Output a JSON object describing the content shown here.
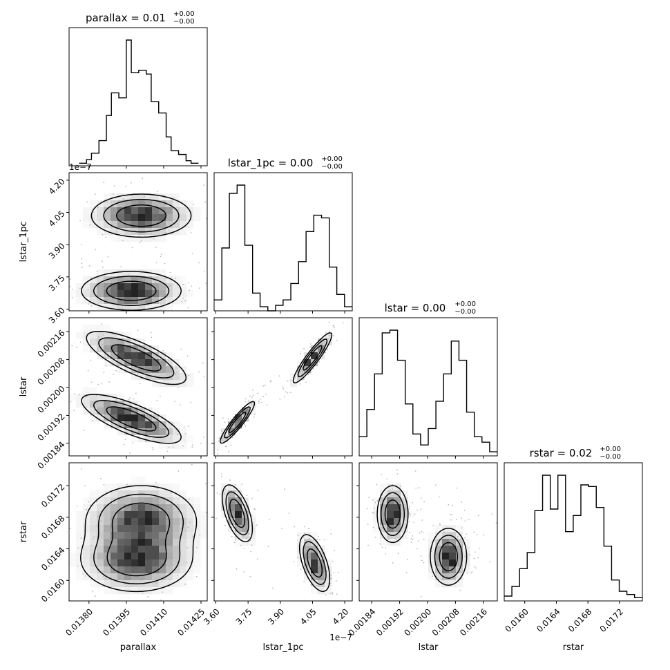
{
  "chart_data": [
    {
      "type": "histogram",
      "panel": "parallax",
      "title_main": "parallax = 0.01",
      "title_sup": "+0.00",
      "title_sub": "−0.00",
      "xlim": [
        0.01372,
        0.014275
      ],
      "xticks": [
        "0.01380",
        "0.01395",
        "0.01410",
        "0.01425"
      ],
      "xtick_values": [
        0.0138,
        0.01395,
        0.0141,
        0.01425
      ],
      "bin_edges": [
        0.01376,
        0.01379,
        0.01381,
        0.01384,
        0.01387,
        0.01389,
        0.01392,
        0.01395,
        0.01397,
        0.014,
        0.01403,
        0.01405,
        0.01408,
        0.01411,
        0.01413,
        0.01416,
        0.01419,
        0.01421,
        0.01424
      ],
      "counts": [
        2,
        5,
        10,
        20,
        40,
        58,
        54,
        100,
        74,
        76,
        73,
        51,
        42,
        23,
        12,
        9,
        4,
        2
      ]
    },
    {
      "type": "contour",
      "panel": "lstar_1pc vs parallax",
      "xlim": [
        0.01372,
        0.014275
      ],
      "ylim": [
        3.592,
        4.235
      ],
      "yticks": [
        "4.20",
        "4.05",
        "3.90",
        "3.75",
        "3.60"
      ],
      "ytick_values": [
        4.2,
        4.05,
        3.9,
        3.75,
        3.6
      ],
      "ylabel": "lstar_1pc",
      "offset_label": "1e−7",
      "modes": [
        {
          "x": 0.01401,
          "y": 4.035,
          "sx": 0.0001,
          "sy": 0.05,
          "rho": 0,
          "w": 1
        },
        {
          "x": 0.01397,
          "y": 3.685,
          "sx": 0.0001,
          "sy": 0.045,
          "rho": 0,
          "w": 1
        }
      ]
    },
    {
      "type": "histogram",
      "panel": "lstar_1pc",
      "title_main": "lstar_1pc = 0.00",
      "title_sup": "+0.00",
      "title_sub": "−0.00",
      "xlim": [
        3.592,
        4.235
      ],
      "xticks": [
        "3.60",
        "3.75",
        "3.90",
        "4.05",
        "4.20"
      ],
      "xtick_values": [
        3.6,
        3.75,
        3.9,
        4.05,
        4.2
      ],
      "bin_edges": [
        3.592,
        3.628,
        3.663,
        3.699,
        3.735,
        3.771,
        3.806,
        3.842,
        3.878,
        3.913,
        3.949,
        3.985,
        4.02,
        4.056,
        4.092,
        4.128,
        4.163,
        4.199,
        4.235
      ],
      "counts": [
        8,
        46,
        86,
        92,
        48,
        13,
        3,
        0,
        4,
        8,
        20,
        36,
        58,
        70,
        68,
        32,
        12,
        3
      ]
    },
    {
      "type": "contour",
      "panel": "lstar vs parallax",
      "xlim": [
        0.01372,
        0.014275
      ],
      "ylim": [
        0.001804,
        0.0022
      ],
      "yticks": [
        "0.00216",
        "0.00208",
        "0.00200",
        "0.00192",
        "0.00184"
      ],
      "ytick_values": [
        0.00216,
        0.00208,
        0.002,
        0.00192,
        0.00184
      ],
      "ylabel": "lstar",
      "modes": [
        {
          "x": 0.01399,
          "y": 0.002085,
          "sx": 0.0001,
          "sy": 3.8e-05,
          "rho": -0.75,
          "w": 1
        },
        {
          "x": 0.01397,
          "y": 0.00191,
          "sx": 0.0001,
          "sy": 3.5e-05,
          "rho": -0.75,
          "w": 1
        }
      ]
    },
    {
      "type": "contour",
      "panel": "lstar vs lstar_1pc",
      "xlim": [
        3.592,
        4.235
      ],
      "ylim": [
        0.001804,
        0.0022
      ],
      "modes": [
        {
          "x": 4.05,
          "y": 0.002085,
          "sx": 0.045,
          "sy": 3.6e-05,
          "rho": 0.92,
          "w": 1
        },
        {
          "x": 3.7,
          "y": 0.0019,
          "sx": 0.04,
          "sy": 3e-05,
          "rho": 0.92,
          "w": 1
        }
      ]
    },
    {
      "type": "histogram",
      "panel": "lstar",
      "title_main": "lstar = 0.00",
      "title_sup": "+0.00",
      "title_sub": "−0.00",
      "xlim": [
        0.001804,
        0.0022
      ],
      "xticks": [
        "0.00184",
        "0.00192",
        "0.00200",
        "0.00208",
        "0.00216"
      ],
      "xtick_values": [
        0.00184,
        0.00192,
        0.002,
        0.00208,
        0.00216
      ],
      "bin_edges": [
        0.001804,
        0.001826,
        0.001848,
        0.00187,
        0.001892,
        0.001914,
        0.001936,
        0.001958,
        0.00198,
        0.002002,
        0.002024,
        0.002046,
        0.002068,
        0.00209,
        0.002112,
        0.002134,
        0.002156,
        0.002178,
        0.0022
      ],
      "counts": [
        14,
        34,
        60,
        90,
        92,
        70,
        38,
        16,
        8,
        20,
        40,
        60,
        84,
        70,
        32,
        14,
        10,
        3
      ]
    },
    {
      "type": "contour",
      "panel": "rstar vs parallax",
      "xlim": [
        0.01372,
        0.014275
      ],
      "ylim": [
        0.01574,
        0.01749
      ],
      "yticks": [
        "0.0172",
        "0.0168",
        "0.0164",
        "0.0160"
      ],
      "ytick_values": [
        0.0172,
        0.0168,
        0.0164,
        0.016
      ],
      "ylabel": "rstar",
      "xlabel": "parallax",
      "modes": [
        {
          "x": 0.01401,
          "y": 0.01676,
          "sx": 0.00011,
          "sy": 0.00022,
          "rho": 0,
          "w": 1
        },
        {
          "x": 0.01399,
          "y": 0.01626,
          "sx": 0.00011,
          "sy": 0.0002,
          "rho": 0,
          "w": 1
        }
      ]
    },
    {
      "type": "contour",
      "panel": "rstar vs lstar_1pc",
      "xlim": [
        3.592,
        4.235
      ],
      "ylim": [
        0.01574,
        0.01749
      ],
      "xlabel": "lstar_1pc",
      "offset_label": "1e−7",
      "modes": [
        {
          "x": 3.7,
          "y": 0.01685,
          "sx": 0.035,
          "sy": 0.00018,
          "rho": -0.55,
          "w": 1
        },
        {
          "x": 4.06,
          "y": 0.01622,
          "sx": 0.035,
          "sy": 0.00018,
          "rho": -0.55,
          "w": 1
        }
      ]
    },
    {
      "type": "contour",
      "panel": "rstar vs lstar",
      "xlim": [
        0.001804,
        0.0022
      ],
      "ylim": [
        0.01574,
        0.01749
      ],
      "xlabel": "lstar",
      "modes": [
        {
          "x": 0.0019,
          "y": 0.01684,
          "sx": 2.2e-05,
          "sy": 0.00018,
          "rho": 0,
          "w": 1
        },
        {
          "x": 0.00206,
          "y": 0.0163,
          "sx": 2.6e-05,
          "sy": 0.00018,
          "rho": 0,
          "w": 1
        }
      ]
    },
    {
      "type": "histogram",
      "panel": "rstar",
      "title_main": "rstar = 0.02",
      "title_sup": "+0.00",
      "title_sub": "−0.00",
      "xlabel": "rstar",
      "xlim": [
        0.01574,
        0.01749
      ],
      "xticks": [
        "0.0160",
        "0.0164",
        "0.0168",
        "0.0172"
      ],
      "xtick_values": [
        0.016,
        0.0164,
        0.0168,
        0.0172
      ],
      "bin_edges": [
        0.01574,
        0.015837,
        0.015934,
        0.016031,
        0.016128,
        0.016226,
        0.016323,
        0.01642,
        0.016517,
        0.016614,
        0.016711,
        0.016808,
        0.016906,
        0.017003,
        0.0171,
        0.017197,
        0.017294,
        0.017391,
        0.017488
      ],
      "counts": [
        3,
        9,
        20,
        30,
        56,
        78,
        57,
        78,
        43,
        53,
        72,
        71,
        58,
        34,
        13,
        6,
        4,
        2
      ]
    }
  ]
}
